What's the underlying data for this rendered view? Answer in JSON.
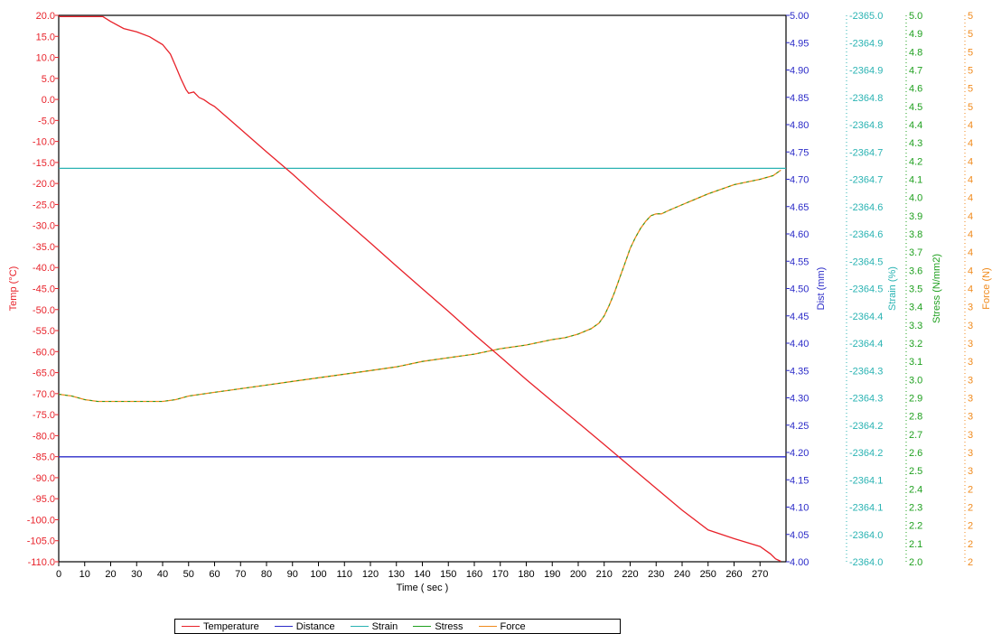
{
  "chart_data": {
    "type": "line",
    "title": "",
    "xlabel": "Time ( sec )",
    "xlim": [
      0,
      280
    ],
    "x_ticks": [
      "0",
      "10",
      "20",
      "30",
      "40",
      "50",
      "60",
      "70",
      "80",
      "90",
      "100",
      "110",
      "120",
      "130",
      "140",
      "150",
      "160",
      "170",
      "180",
      "190",
      "200",
      "210",
      "220",
      "230",
      "240",
      "250",
      "260",
      "270"
    ],
    "grid": false,
    "legend_position": "bottom",
    "axes": [
      {
        "id": "temp",
        "label": "Temp (°C)",
        "side": "left",
        "color": "#e8222a",
        "ylim": [
          -112.5,
          20
        ],
        "ticks": [
          "20.0",
          "15.0",
          "10.0",
          "5.0",
          "0.0",
          "-5.0",
          "-10.0",
          "-15.0",
          "-20.0",
          "-25.0",
          "-30.0",
          "-35.0",
          "-40.0",
          "-45.0",
          "-50.0",
          "-55.0",
          "-60.0",
          "-65.0",
          "-70.0",
          "-75.0",
          "-80.0",
          "-85.0",
          "-90.0",
          "-95.0",
          "-100.0",
          "-105.0",
          "-110.0"
        ]
      },
      {
        "id": "dist",
        "label": "Dist (mm)",
        "side": "right",
        "color": "#2b2bc8",
        "ylim": [
          4.0,
          5.0
        ],
        "ticks": [
          "5.00",
          "4.95",
          "4.90",
          "4.85",
          "4.80",
          "4.75",
          "4.70",
          "4.65",
          "4.60",
          "4.55",
          "4.50",
          "4.45",
          "4.40",
          "4.35",
          "4.30",
          "4.25",
          "4.20",
          "4.15",
          "4.10",
          "4.05",
          "4.00"
        ]
      },
      {
        "id": "strain",
        "label": "Strain (%)",
        "side": "right",
        "color": "#2ab3b3",
        "ylim": [
          -2364.0,
          -2365.0
        ],
        "ticks": [
          "-2365.0",
          "-2364.9",
          "-2364.9",
          "-2364.8",
          "-2364.8",
          "-2364.7",
          "-2364.7",
          "-2364.6",
          "-2364.6",
          "-2364.5",
          "-2364.5",
          "-2364.4",
          "-2364.4",
          "-2364.3",
          "-2364.3",
          "-2364.2",
          "-2364.2",
          "-2364.1",
          "-2364.1",
          "-2364.0",
          "-2364.0"
        ]
      },
      {
        "id": "stress",
        "label": "Stress (N/mm2)",
        "side": "right",
        "color": "#1fa01f",
        "ylim": [
          2.0,
          5.0
        ],
        "ticks": [
          "5.0",
          "4.9",
          "4.8",
          "4.7",
          "4.6",
          "4.5",
          "4.4",
          "4.3",
          "4.2",
          "4.1",
          "4.0",
          "3.9",
          "3.8",
          "3.7",
          "3.6",
          "3.5",
          "3.4",
          "3.3",
          "3.2",
          "3.1",
          "3.0",
          "2.9",
          "2.8",
          "2.7",
          "2.6",
          "2.5",
          "2.4",
          "2.3",
          "2.2",
          "2.1",
          "2.0"
        ]
      },
      {
        "id": "force",
        "label": "Force (N)",
        "side": "right",
        "color": "#f08a1c",
        "ylim": [
          2,
          5
        ],
        "ticks": [
          "5",
          "5",
          "5",
          "5",
          "5",
          "5",
          "4",
          "4",
          "4",
          "4",
          "4",
          "4",
          "4",
          "4",
          "4",
          "4",
          "3",
          "3",
          "3",
          "3",
          "3",
          "3",
          "3",
          "3",
          "3",
          "3",
          "2",
          "2",
          "2",
          "2",
          "2"
        ]
      }
    ],
    "series": [
      {
        "name": "Temperature",
        "axis": "temp",
        "color": "#e8222a",
        "x": [
          0,
          10,
          17,
          20,
          25,
          30,
          35,
          40,
          43,
          45,
          47,
          49,
          50,
          52,
          54,
          56,
          58,
          60,
          70,
          80,
          90,
          100,
          110,
          120,
          130,
          140,
          150,
          160,
          170,
          180,
          190,
          200,
          210,
          220,
          230,
          240,
          250,
          260,
          270,
          274,
          276,
          278
        ],
        "y": [
          19.7,
          19.7,
          19.7,
          18.5,
          16.8,
          16.0,
          14.8,
          12.9,
          10.6,
          7.7,
          4.7,
          2.0,
          1.1,
          1.4,
          0.1,
          -0.5,
          -1.4,
          -2.1,
          -7.6,
          -13.1,
          -18.5,
          -24.2,
          -29.7,
          -35.2,
          -40.8,
          -46.3,
          -51.8,
          -57.4,
          -62.8,
          -68.3,
          -73.6,
          -78.8,
          -84.1,
          -89.4,
          -94.7,
          -100.0,
          -104.8,
          -106.9,
          -108.8,
          -110.6,
          -111.8,
          -112.4
        ]
      },
      {
        "name": "Distance",
        "axis": "dist",
        "color": "#2b2bc8",
        "x": [
          0,
          280
        ],
        "y": [
          4.192,
          4.192
        ]
      },
      {
        "name": "Strain",
        "axis": "strain",
        "color": "#2ab3b3",
        "x": [
          0,
          280
        ],
        "y": [
          -2364.72,
          -2364.72
        ]
      },
      {
        "name": "Stress",
        "axis": "stress",
        "color": "#1fa01f",
        "x": [
          0,
          5,
          10,
          15,
          20,
          25,
          30,
          35,
          40,
          45,
          50,
          60,
          70,
          80,
          90,
          100,
          110,
          120,
          130,
          140,
          150,
          160,
          170,
          180,
          190,
          195,
          200,
          205,
          208,
          210,
          212,
          214,
          216,
          218,
          220,
          222,
          224,
          226,
          228,
          230,
          232,
          235,
          240,
          250,
          260,
          270,
          275,
          278
        ],
        "y": [
          2.92,
          2.91,
          2.89,
          2.88,
          2.88,
          2.88,
          2.88,
          2.88,
          2.88,
          2.89,
          2.91,
          2.93,
          2.95,
          2.97,
          2.99,
          3.01,
          3.03,
          3.05,
          3.07,
          3.1,
          3.12,
          3.14,
          3.17,
          3.19,
          3.22,
          3.23,
          3.25,
          3.28,
          3.31,
          3.35,
          3.41,
          3.48,
          3.56,
          3.64,
          3.72,
          3.78,
          3.83,
          3.87,
          3.9,
          3.91,
          3.91,
          3.93,
          3.96,
          4.02,
          4.07,
          4.1,
          4.12,
          4.15
        ]
      },
      {
        "name": "Force",
        "axis": "force",
        "color": "#f08a1c",
        "x": [
          0,
          5,
          10,
          15,
          20,
          25,
          30,
          35,
          40,
          45,
          50,
          60,
          70,
          80,
          90,
          100,
          110,
          120,
          130,
          140,
          150,
          160,
          170,
          180,
          190,
          195,
          200,
          205,
          208,
          210,
          212,
          214,
          216,
          218,
          220,
          222,
          224,
          226,
          228,
          230,
          232,
          235,
          240,
          250,
          260,
          270,
          275,
          278
        ],
        "y": [
          2.92,
          2.91,
          2.89,
          2.88,
          2.88,
          2.88,
          2.88,
          2.88,
          2.88,
          2.89,
          2.91,
          2.93,
          2.95,
          2.97,
          2.99,
          3.01,
          3.03,
          3.05,
          3.07,
          3.1,
          3.12,
          3.14,
          3.17,
          3.19,
          3.22,
          3.23,
          3.25,
          3.28,
          3.31,
          3.35,
          3.41,
          3.48,
          3.56,
          3.64,
          3.72,
          3.78,
          3.83,
          3.87,
          3.9,
          3.91,
          3.91,
          3.93,
          3.96,
          4.02,
          4.07,
          4.1,
          4.12,
          4.15
        ]
      }
    ]
  }
}
